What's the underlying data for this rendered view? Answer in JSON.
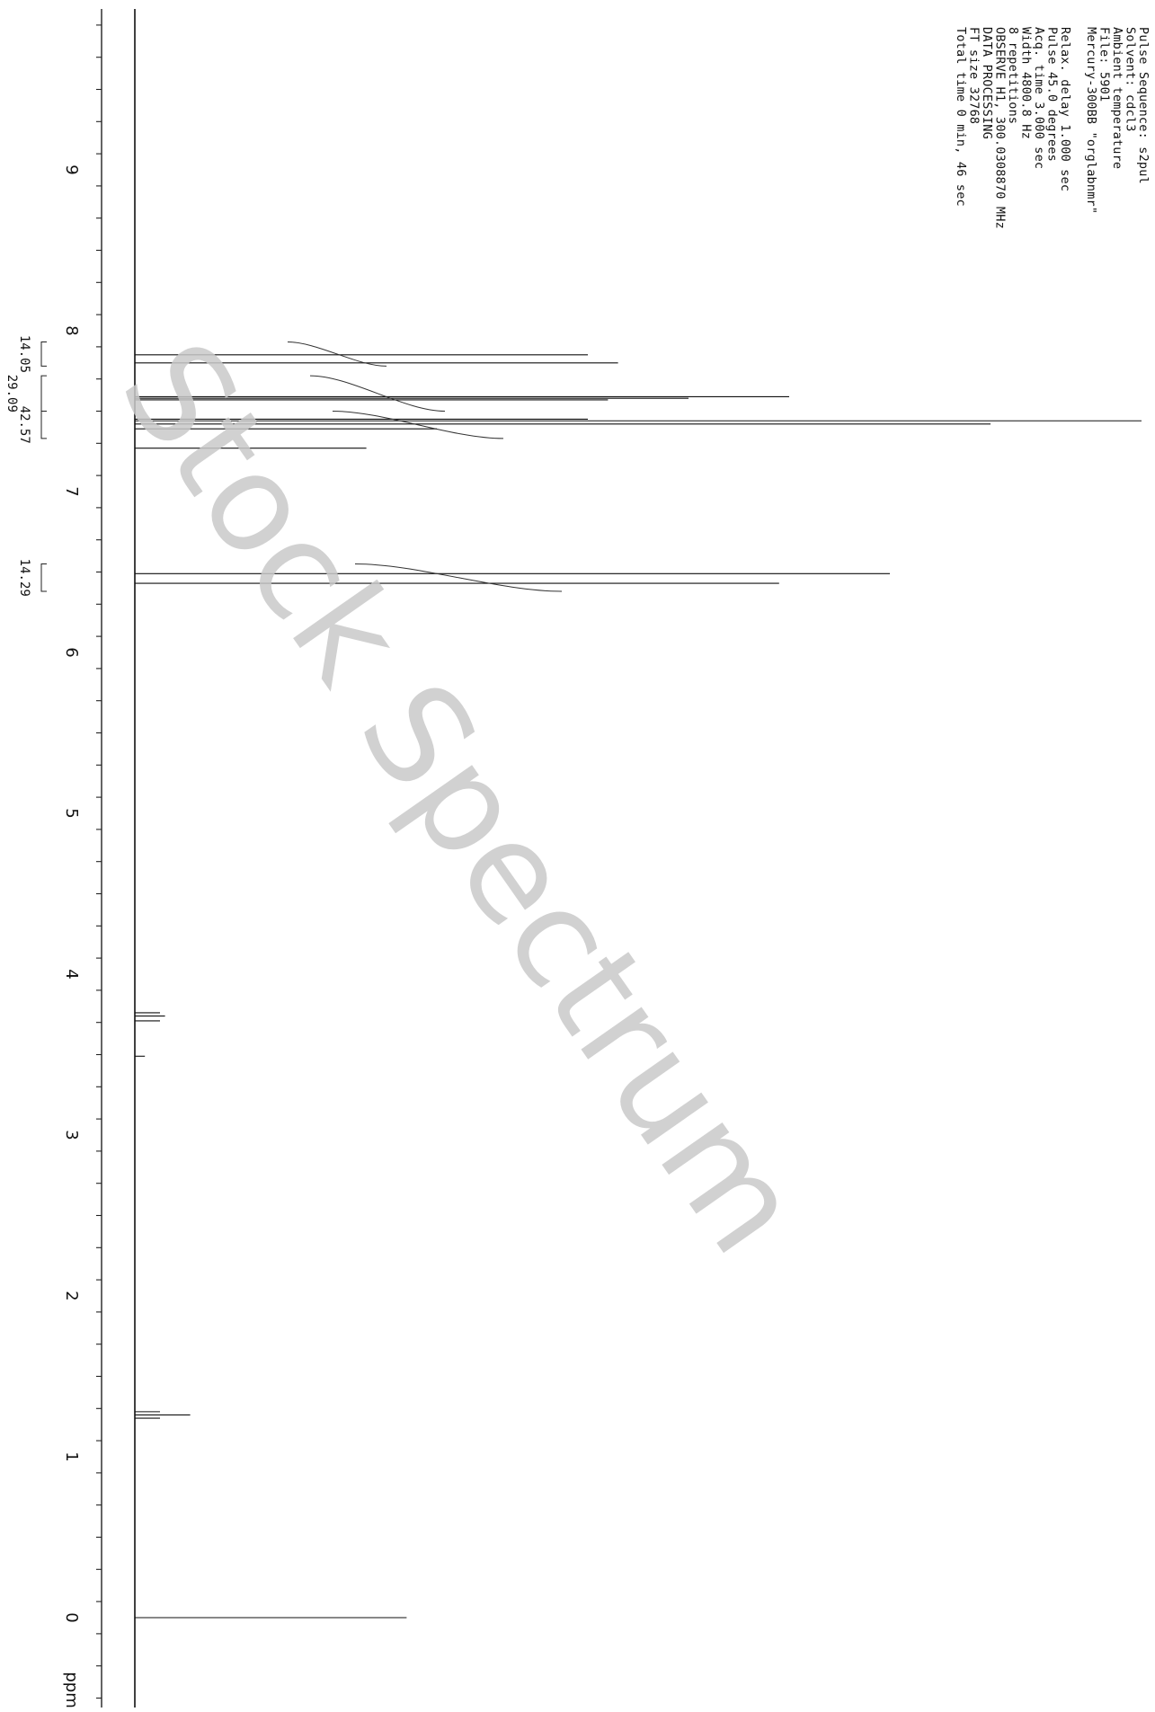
{
  "chart_data": {
    "type": "line",
    "title": "",
    "xlabel": "ppm",
    "ylabel": "",
    "x_axis": {
      "min": -0.7,
      "max": 10.0,
      "reversed": true,
      "ticks": [
        9,
        8,
        7,
        6,
        5,
        4,
        3,
        2,
        1,
        0
      ],
      "minor_step": 0.2,
      "unit_label": "ppm"
    },
    "peaks": [
      {
        "ppm": 7.85,
        "height": 0.45
      },
      {
        "ppm": 7.8,
        "height": 0.48
      },
      {
        "ppm": 7.59,
        "height": 0.65
      },
      {
        "ppm": 7.58,
        "height": 0.55
      },
      {
        "ppm": 7.57,
        "height": 0.47
      },
      {
        "ppm": 7.45,
        "height": 0.45
      },
      {
        "ppm": 7.44,
        "height": 1.0
      },
      {
        "ppm": 7.42,
        "height": 0.85
      },
      {
        "ppm": 7.39,
        "height": 0.3
      },
      {
        "ppm": 7.27,
        "height": 0.23
      },
      {
        "ppm": 6.49,
        "height": 0.75
      },
      {
        "ppm": 6.43,
        "height": 0.64
      },
      {
        "ppm": 3.76,
        "height": 0.025
      },
      {
        "ppm": 3.74,
        "height": 0.03
      },
      {
        "ppm": 3.71,
        "height": 0.025
      },
      {
        "ppm": 3.49,
        "height": 0.01
      },
      {
        "ppm": 1.28,
        "height": 0.025
      },
      {
        "ppm": 1.26,
        "height": 0.055
      },
      {
        "ppm": 1.24,
        "height": 0.025
      },
      {
        "ppm": 0.0,
        "height": 0.27
      }
    ],
    "integrals": [
      {
        "from": 7.93,
        "to": 7.78,
        "value": "14.05"
      },
      {
        "from": 7.72,
        "to": 7.5,
        "value": "29.09"
      },
      {
        "from": 7.5,
        "to": 7.33,
        "value": "42.57"
      },
      {
        "from": 6.55,
        "to": 6.38,
        "value": "14.29"
      }
    ],
    "grid": false,
    "legend": "none"
  },
  "parameters": [
    "Pulse Sequence: s2pul",
    "  Solvent: cdcl3",
    "  Ambient temperature",
    "  File: 5901",
    "  Mercury-300BB  \"orglabnmr\"",
    "",
    "  Relax. delay 1.000 sec",
    "  Pulse 45.0 degrees",
    "  Acq. time 3.000 sec",
    "  Width 4800.8 Hz",
    "  8 repetitions",
    "OBSERVE   H1, 300.0308870 MHz",
    "DATA PROCESSING",
    "FT size 32768",
    "Total time 0 min, 46 sec"
  ],
  "watermark": "Stock Spectrum"
}
